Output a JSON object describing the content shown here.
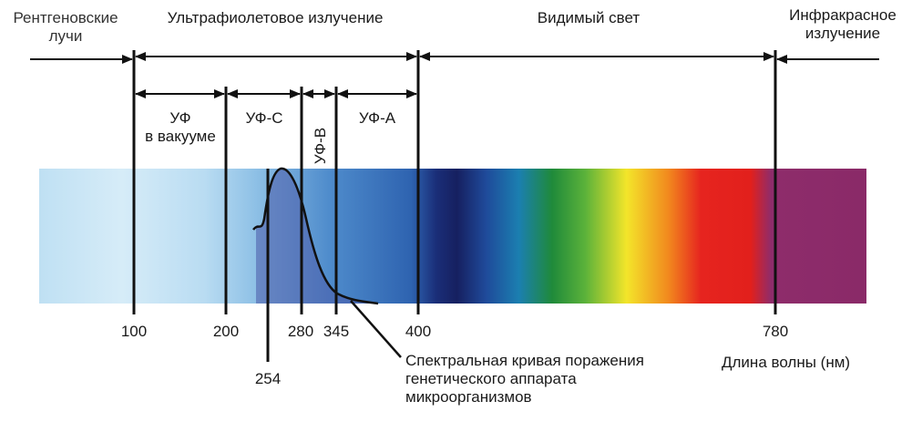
{
  "regions": {
    "xray": [
      "Рентгеновские",
      "лучи"
    ],
    "uv": "Ультрафиолетовое излучение",
    "visible": "Видимый свет",
    "infrared": [
      "Инфракрасное",
      "излучение"
    ]
  },
  "subregions": {
    "uv_vacuum": [
      "УФ",
      "в вакууме"
    ],
    "uv_c": "УФ-С",
    "uv_b": "УФ-В",
    "uv_a": "УФ-А"
  },
  "ticks": [
    "100",
    "200",
    "280",
    "345",
    "400",
    "780"
  ],
  "extra_tick": "254",
  "curve_label": [
    "Спектральная кривая поражения",
    "генетического аппарата",
    "микроорганизмов"
  ],
  "axis_label": "Длина волны (нм)",
  "colors": {
    "uv_light": "#cfe8f7",
    "uv_blue": "#2d5ea8",
    "violet_deep": "#1a1f5c",
    "green": "#1f8a3a",
    "yellow": "#f3e52a",
    "orange": "#f28a1e",
    "red": "#e6241f",
    "infrared": "#8e2c6b",
    "curve_fill": "#4a5aa8"
  }
}
